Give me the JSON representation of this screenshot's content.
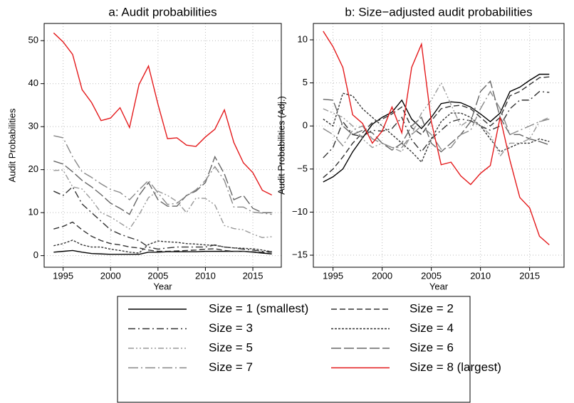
{
  "chart_data": [
    {
      "type": "line",
      "title": "a: Audit probabilities",
      "xlabel": "Year",
      "ylabel": "Audit Probabilities",
      "x": [
        1994,
        1995,
        1996,
        1997,
        1998,
        1999,
        2000,
        2001,
        2002,
        2003,
        2004,
        2005,
        2006,
        2007,
        2008,
        2009,
        2010,
        2011,
        2012,
        2013,
        2014,
        2015,
        2016,
        2017
      ],
      "xlim": [
        1993,
        2018
      ],
      "xticks": [
        1995,
        2000,
        2005,
        2010,
        2015
      ],
      "ylim": [
        -2.7,
        54
      ],
      "yticks": [
        0,
        10,
        20,
        30,
        40,
        50
      ],
      "grid": true,
      "series": [
        {
          "name": "Size = 1 (smallest)",
          "color": "#000000",
          "dash": "none",
          "values": [
            0.8,
            1.0,
            1.2,
            0.8,
            0.5,
            0.4,
            0.3,
            0.3,
            0.3,
            0.3,
            0.8,
            0.8,
            0.9,
            0.9,
            0.9,
            0.9,
            1.0,
            1.0,
            1.0,
            1.0,
            1.0,
            0.8,
            0.6,
            0.4
          ]
        },
        {
          "name": "Size = 2",
          "color": "#333333",
          "dash": "8,4",
          "values": [
            6.2,
            6.8,
            7.8,
            6.0,
            4.5,
            3.5,
            2.8,
            2.5,
            2.0,
            1.8,
            1.3,
            1.0,
            1.0,
            1.1,
            1.2,
            1.3,
            1.5,
            1.6,
            1.2,
            1.0,
            1.0,
            0.9,
            0.8,
            0.8
          ]
        },
        {
          "name": "Size = 3",
          "color": "#333333",
          "dash": "10,4,2,4",
          "values": [
            15.0,
            14.0,
            16.0,
            12.0,
            10.0,
            8.0,
            6.0,
            5.0,
            4.2,
            3.5,
            2.0,
            1.5,
            1.8,
            2.0,
            2.0,
            2.0,
            2.0,
            2.5,
            2.0,
            1.8,
            1.5,
            1.3,
            1.0,
            0.9
          ]
        },
        {
          "name": "Size = 4",
          "color": "#333333",
          "dash": "3,2",
          "values": [
            2.3,
            2.8,
            3.6,
            2.5,
            2.0,
            2.0,
            1.5,
            1.2,
            0.8,
            0.6,
            2.6,
            3.4,
            3.2,
            3.1,
            2.8,
            2.7,
            2.5,
            2.4,
            2.0,
            1.8,
            1.7,
            1.6,
            1.3,
            0.9
          ]
        },
        {
          "name": "Size = 5",
          "color": "#999999",
          "dash": "8,3,2,3,2,3",
          "values": [
            19.8,
            19.9,
            16.0,
            15.5,
            13.0,
            10.0,
            9.0,
            7.6,
            6.2,
            9.5,
            13.5,
            15.0,
            14.0,
            12.6,
            10.0,
            13.4,
            13.3,
            11.8,
            7.0,
            6.3,
            6.0,
            5.0,
            4.2,
            4.4
          ]
        },
        {
          "name": "Size = 6",
          "color": "#666666",
          "dash": "14,4",
          "values": [
            22.0,
            21.3,
            19.5,
            17.5,
            16.0,
            14.2,
            12.2,
            11.0,
            9.6,
            14.0,
            17.0,
            13.0,
            11.5,
            11.5,
            14.0,
            15.0,
            17.0,
            23.0,
            19.0,
            13.0,
            14.0,
            11.0,
            10.0,
            10.0
          ]
        },
        {
          "name": "Size = 7",
          "color": "#888888",
          "dash": "14,4,2,4",
          "values": [
            27.9,
            27.4,
            23.0,
            19.5,
            18.2,
            16.7,
            15.4,
            14.7,
            13.0,
            15.3,
            17.5,
            14.6,
            11.9,
            12.2,
            13.9,
            15.3,
            17.5,
            20.7,
            17.5,
            11.3,
            11.3,
            10.1,
            9.9,
            9.6
          ]
        },
        {
          "name": "Size = 8 (largest)",
          "color": "#e41a1c",
          "dash": "none",
          "values": [
            51.8,
            49.7,
            46.8,
            38.6,
            35.6,
            31.4,
            32.0,
            34.4,
            29.8,
            39.8,
            44.1,
            35.2,
            27.2,
            27.4,
            25.7,
            25.4,
            27.6,
            29.4,
            33.9,
            26.3,
            21.6,
            19.3,
            15.2,
            14.1
          ]
        }
      ]
    },
    {
      "type": "line",
      "title": "b: Size−adjusted audit probabilities",
      "xlabel": "Year",
      "ylabel": "Audit Probabilities (Adj.)",
      "x": [
        1994,
        1995,
        1996,
        1997,
        1998,
        1999,
        2000,
        2001,
        2002,
        2003,
        2004,
        2005,
        2006,
        2007,
        2008,
        2009,
        2010,
        2011,
        2012,
        2013,
        2014,
        2015,
        2016,
        2017
      ],
      "xlim": [
        1993,
        2018.5
      ],
      "xticks": [
        1995,
        2000,
        2005,
        2010,
        2015
      ],
      "ylim": [
        -16.4,
        11.9
      ],
      "yticks": [
        {
          "value": -15,
          "label": "−15"
        },
        {
          "value": -10,
          "label": "−10"
        },
        {
          "value": -5,
          "label": "−5"
        },
        0,
        5,
        10
      ],
      "grid": true,
      "series": [
        {
          "color": "#000000",
          "dash": "none",
          "values": [
            -6.5,
            -5.9,
            -5.0,
            -3.0,
            -1.4,
            0.2,
            1.0,
            1.6,
            3.0,
            0.8,
            -0.3,
            1.0,
            2.6,
            2.8,
            2.7,
            2.2,
            1.4,
            0.5,
            1.5,
            4.0,
            4.5,
            5.3,
            6.0,
            6.0
          ]
        },
        {
          "color": "#333333",
          "dash": "8,4",
          "values": [
            -6.0,
            -5.0,
            -3.6,
            -2.0,
            -0.8,
            0.4,
            0.8,
            1.4,
            2.2,
            -0.2,
            -1.0,
            0.6,
            2.0,
            2.3,
            2.4,
            2.0,
            1.0,
            0.0,
            1.0,
            3.5,
            4.0,
            4.8,
            5.6,
            5.7
          ]
        },
        {
          "color": "#333333",
          "dash": "10,4,2,4",
          "values": [
            -3.7,
            -2.5,
            0.5,
            -1.0,
            -1.2,
            -0.5,
            -0.6,
            -0.3,
            1.0,
            -1.6,
            -3.0,
            -1.5,
            -0.5,
            0.5,
            0.8,
            0.6,
            0.0,
            -0.5,
            0.0,
            2.0,
            3.0,
            3.0,
            4.0,
            3.9
          ]
        },
        {
          "color": "#333333",
          "dash": "3,2",
          "values": [
            0.8,
            0.0,
            3.8,
            3.5,
            2.0,
            1.0,
            0.0,
            -1.0,
            -2.0,
            -3.0,
            -4.2,
            -1.5,
            0.5,
            1.5,
            1.5,
            1.0,
            0.0,
            -1.5,
            -3.0,
            -2.5,
            -2.0,
            -2.0,
            -1.5,
            -1.8
          ]
        },
        {
          "color": "#999999",
          "dash": "8,3,2,3,2,3",
          "values": [
            2.0,
            1.5,
            1.0,
            0.0,
            -1.5,
            -2.5,
            -2.0,
            -2.5,
            -3.0,
            -1.0,
            1.5,
            3.0,
            5.0,
            2.5,
            0.0,
            0.8,
            0.0,
            -1.0,
            -3.5,
            -2.0,
            -2.0,
            -1.5,
            0.5,
            1.0
          ]
        },
        {
          "color": "#666666",
          "dash": "14,4",
          "values": [
            3.1,
            3.0,
            0.0,
            -1.0,
            -0.5,
            -0.8,
            -2.0,
            -2.8,
            -2.0,
            0.0,
            1.0,
            -2.0,
            -3.0,
            -2.0,
            -1.0,
            0.5,
            4.0,
            5.2,
            1.0,
            -1.0,
            -1.0,
            -1.5,
            -1.8,
            -2.2
          ]
        },
        {
          "color": "#888888",
          "dash": "14,4,2,4",
          "values": [
            -0.3,
            -1.0,
            -2.3,
            -0.5,
            0.0,
            -1.5,
            -2.0,
            -2.5,
            -2.5,
            -1.0,
            0.0,
            -1.0,
            -2.7,
            -2.5,
            -1.0,
            -0.5,
            2.0,
            4.0,
            2.0,
            -1.0,
            -0.5,
            0.0,
            0.5,
            0.8
          ]
        },
        {
          "color": "#e41a1c",
          "dash": "none",
          "values": [
            11.0,
            9.2,
            6.8,
            1.3,
            0.3,
            -2.0,
            -0.6,
            2.2,
            -0.8,
            6.8,
            9.5,
            0.5,
            -4.5,
            -4.2,
            -5.8,
            -6.8,
            -5.5,
            -4.6,
            1.0,
            -4.0,
            -8.3,
            -9.5,
            -12.8,
            -13.8
          ]
        }
      ]
    }
  ]
}
